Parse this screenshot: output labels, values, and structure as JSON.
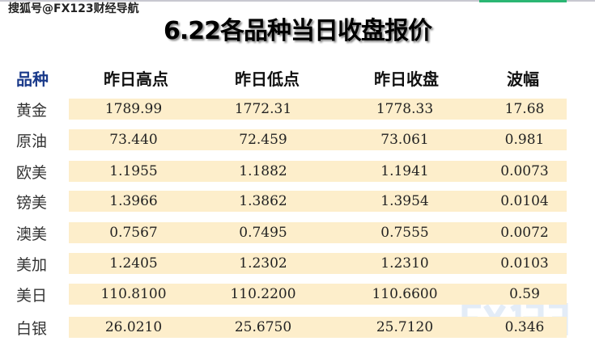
{
  "watermark": "搜狐号@FX123财经导航",
  "logo_watermark": "FX123",
  "title": "6.22各品种当日收盘报价",
  "headers": [
    "品种",
    "昨日高点",
    "昨日低点",
    "昨日收盘",
    "波幅"
  ],
  "rows": [
    {
      "name": "黄金",
      "high": "1789.99",
      "low": "1772.31",
      "close": "1778.33",
      "range": "17.68"
    },
    {
      "name": "原油",
      "high": "73.440",
      "low": "72.459",
      "close": "73.061",
      "range": "0.981"
    },
    {
      "name": "欧美",
      "high": "1.1955",
      "low": "1.1882",
      "close": "1.1941",
      "range": "0.0073"
    },
    {
      "name": "镑美",
      "high": "1.3966",
      "low": "1.3862",
      "close": "1.3954",
      "range": "0.0104"
    },
    {
      "name": "澳美",
      "high": "0.7567",
      "low": "0.7495",
      "close": "0.7555",
      "range": "0.0072"
    },
    {
      "name": "美加",
      "high": "1.2405",
      "low": "1.2302",
      "close": "1.2310",
      "range": "0.0103"
    },
    {
      "name": "美日",
      "high": "110.8100",
      "low": "110.2200",
      "close": "110.6600",
      "range": "0.59"
    },
    {
      "name": "白银",
      "high": "26.0210",
      "low": "25.6750",
      "close": "25.7120",
      "range": "0.346"
    }
  ]
}
